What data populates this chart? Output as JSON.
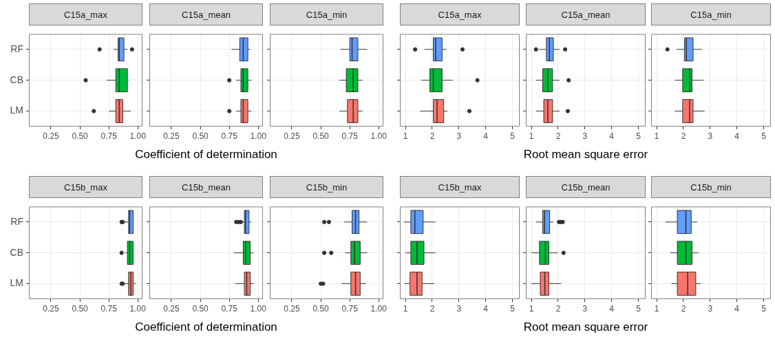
{
  "chart_data": [
    {
      "type": "box",
      "orientation": "horizontal",
      "title": "C15a_max",
      "categories": [
        "RF",
        "CB",
        "LM"
      ],
      "colors": [
        "#619cff",
        "#00ba38",
        "#f8766d"
      ],
      "xlim": [
        0.06,
        1.04
      ],
      "xticks": [
        {
          "value": 0.25,
          "label": "0.25"
        },
        {
          "value": 0.5,
          "label": "0.50"
        },
        {
          "value": 0.75,
          "label": "0.75"
        },
        {
          "value": 1,
          "label": "1.00"
        }
      ],
      "grid": true,
      "boxes": [
        {
          "low": 0.79,
          "q1": 0.83,
          "median": 0.84,
          "q3": 0.88,
          "high": 0.91,
          "outliers": [
            0.67,
            0.95
          ]
        },
        {
          "low": 0.73,
          "q1": 0.81,
          "median": 0.84,
          "q3": 0.91,
          "high": 0.92,
          "outliers": [
            0.55
          ]
        },
        {
          "low": 0.75,
          "q1": 0.81,
          "median": 0.84,
          "q3": 0.87,
          "high": 0.94,
          "outliers": [
            0.62
          ]
        }
      ]
    },
    {
      "type": "box",
      "orientation": "horizontal",
      "title": "C15a_mean",
      "xlabel": "Coefficient of determination",
      "tick_labels": "x",
      "categories": [
        null,
        null,
        null
      ],
      "colors": [
        "#619cff",
        "#00ba38",
        "#f8766d"
      ],
      "xlim": [
        0.06,
        1.04
      ],
      "xticks": [
        {
          "value": 0.25,
          "label": "0.25"
        },
        {
          "value": 0.5,
          "label": "0.50"
        },
        {
          "value": 0.75,
          "label": "0.75"
        },
        {
          "value": 1,
          "label": "1.00"
        }
      ],
      "grid": true,
      "boxes": [
        {
          "low": 0.77,
          "q1": 0.84,
          "median": 0.87,
          "q3": 0.91,
          "high": 0.93
        },
        {
          "low": 0.81,
          "q1": 0.85,
          "median": 0.87,
          "q3": 0.91,
          "high": 0.94,
          "outliers": [
            0.75
          ]
        },
        {
          "low": 0.81,
          "q1": 0.85,
          "median": 0.87,
          "q3": 0.91,
          "high": 0.94,
          "outliers": [
            0.75
          ]
        }
      ]
    },
    {
      "type": "box",
      "orientation": "horizontal",
      "title": "C15a_min",
      "tick_labels": "x",
      "categories": [
        null,
        null,
        null
      ],
      "colors": [
        "#619cff",
        "#00ba38",
        "#f8766d"
      ],
      "xlim": [
        0.06,
        1.04
      ],
      "xticks": [
        {
          "value": 0.25,
          "label": "0.25"
        },
        {
          "value": 0.5,
          "label": "0.50"
        },
        {
          "value": 0.75,
          "label": "0.75"
        },
        {
          "value": 1,
          "label": "1.00"
        }
      ],
      "grid": true,
      "boxes": [
        {
          "low": 0.67,
          "q1": 0.75,
          "median": 0.77,
          "q3": 0.82,
          "high": 0.9
        },
        {
          "low": 0.66,
          "q1": 0.72,
          "median": 0.78,
          "q3": 0.82,
          "high": 0.86
        },
        {
          "low": 0.66,
          "q1": 0.73,
          "median": 0.78,
          "q3": 0.82,
          "high": 0.86
        }
      ]
    },
    {
      "type": "box",
      "orientation": "horizontal",
      "title": "C15a_max",
      "tick_labels": "x",
      "categories": [
        null,
        null,
        null
      ],
      "colors": [
        "#619cff",
        "#00ba38",
        "#f8766d"
      ],
      "xlim": [
        0.79,
        5.27
      ],
      "xticks": [
        1,
        2,
        3,
        4,
        5
      ],
      "grid": true,
      "boxes": [
        {
          "low": 1.71,
          "q1": 2.04,
          "median": 2.13,
          "q3": 2.37,
          "high": 2.53,
          "outliers": [
            1.36,
            3.13
          ]
        },
        {
          "low": 1.59,
          "q1": 1.91,
          "median": 2.04,
          "q3": 2.37,
          "high": 2.77,
          "outliers": [
            3.69
          ]
        },
        {
          "low": 1.55,
          "q1": 2.04,
          "median": 2.18,
          "q3": 2.43,
          "high": 2.57,
          "outliers": [
            3.39
          ]
        }
      ]
    },
    {
      "type": "box",
      "orientation": "horizontal",
      "title": "C15a_mean",
      "xlabel": "Root mean square error",
      "tick_labels": "x",
      "categories": [
        null,
        null,
        null
      ],
      "colors": [
        "#619cff",
        "#00ba38",
        "#f8766d"
      ],
      "xlim": [
        0.79,
        5.27
      ],
      "xticks": [
        1,
        2,
        3,
        4,
        5
      ],
      "grid": true,
      "boxes": [
        {
          "low": 1.28,
          "q1": 1.56,
          "median": 1.67,
          "q3": 1.82,
          "high": 2.05,
          "outliers": [
            1.17,
            2.26
          ]
        },
        {
          "low": 1.17,
          "q1": 1.42,
          "median": 1.61,
          "q3": 1.79,
          "high": 2.05,
          "outliers": [
            2.39
          ]
        },
        {
          "low": 1.17,
          "q1": 1.46,
          "median": 1.61,
          "q3": 1.79,
          "high": 2.05,
          "outliers": [
            2.36
          ]
        }
      ]
    },
    {
      "type": "box",
      "orientation": "horizontal",
      "title": "C15a_min",
      "tick_labels": "x",
      "categories": [
        null,
        null,
        null
      ],
      "colors": [
        "#619cff",
        "#00ba38",
        "#f8766d"
      ],
      "xlim": [
        0.79,
        5.27
      ],
      "xticks": [
        1,
        2,
        3,
        4,
        5
      ],
      "grid": true,
      "boxes": [
        {
          "low": 1.75,
          "q1": 2.04,
          "median": 2.11,
          "q3": 2.36,
          "high": 2.69,
          "outliers": [
            1.4
          ]
        },
        {
          "low": 1.68,
          "q1": 1.97,
          "median": 2.23,
          "q3": 2.32,
          "high": 2.75
        },
        {
          "low": 1.68,
          "q1": 1.97,
          "median": 2.23,
          "q3": 2.36,
          "high": 2.79
        }
      ]
    },
    {
      "type": "box",
      "orientation": "horizontal",
      "title": "C15b_max",
      "categories": [
        "RF",
        "CB",
        "LM"
      ],
      "colors": [
        "#619cff",
        "#00ba38",
        "#f8766d"
      ],
      "xlim": [
        0.06,
        1.04
      ],
      "xticks": [
        {
          "value": 0.25,
          "label": "0.25"
        },
        {
          "value": 0.5,
          "label": "0.50"
        },
        {
          "value": 0.75,
          "label": "0.75"
        },
        {
          "value": 1,
          "label": "1.00"
        }
      ],
      "grid": true,
      "boxes": [
        {
          "low": 0.89,
          "q1": 0.92,
          "median": 0.93,
          "q3": 0.96,
          "high": 0.96,
          "outliers": [
            0.86,
            0.87
          ]
        },
        {
          "low": 0.89,
          "q1": 0.91,
          "median": 0.93,
          "q3": 0.96,
          "high": 0.96,
          "outliers": [
            0.86
          ]
        },
        {
          "low": 0.89,
          "q1": 0.92,
          "median": 0.94,
          "q3": 0.96,
          "high": 0.98,
          "outliers": [
            0.86,
            0.87
          ]
        }
      ]
    },
    {
      "type": "box",
      "orientation": "horizontal",
      "title": "C15b_mean",
      "xlabel": "Coefficient of determination",
      "tick_labels": "x",
      "categories": [
        null,
        null,
        null
      ],
      "colors": [
        "#619cff",
        "#00ba38",
        "#f8766d"
      ],
      "xlim": [
        0.06,
        1.04
      ],
      "xticks": [
        {
          "value": 0.25,
          "label": "0.25"
        },
        {
          "value": 0.5,
          "label": "0.50"
        },
        {
          "value": 0.75,
          "label": "0.75"
        },
        {
          "value": 1,
          "label": "1.00"
        }
      ],
      "grid": true,
      "boxes": [
        {
          "low": 0.87,
          "q1": 0.88,
          "median": 0.89,
          "q3": 0.92,
          "high": 0.94,
          "outliers": [
            0.81,
            0.83,
            0.85
          ]
        },
        {
          "low": 0.79,
          "q1": 0.87,
          "median": 0.89,
          "q3": 0.93,
          "high": 0.96
        },
        {
          "low": 0.8,
          "q1": 0.88,
          "median": 0.9,
          "q3": 0.93,
          "high": 0.96
        }
      ]
    },
    {
      "type": "box",
      "orientation": "horizontal",
      "title": "C15b_min",
      "tick_labels": "x",
      "categories": [
        null,
        null,
        null
      ],
      "colors": [
        "#619cff",
        "#00ba38",
        "#f8766d"
      ],
      "xlim": [
        0.06,
        1.04
      ],
      "xticks": [
        {
          "value": 0.25,
          "label": "0.25"
        },
        {
          "value": 0.5,
          "label": "0.50"
        },
        {
          "value": 0.75,
          "label": "0.75"
        },
        {
          "value": 1,
          "label": "1.00"
        }
      ],
      "grid": true,
      "boxes": [
        {
          "low": 0.7,
          "q1": 0.77,
          "median": 0.8,
          "q3": 0.83,
          "high": 0.9,
          "outliers": [
            0.53,
            0.57
          ]
        },
        {
          "low": 0.71,
          "q1": 0.76,
          "median": 0.79,
          "q3": 0.84,
          "high": 0.9,
          "outliers": [
            0.53,
            0.59
          ]
        },
        {
          "low": 0.68,
          "q1": 0.76,
          "median": 0.8,
          "q3": 0.84,
          "high": 0.89,
          "outliers": [
            0.5,
            0.52
          ]
        }
      ]
    },
    {
      "type": "box",
      "orientation": "horizontal",
      "title": "C15b_max",
      "tick_labels": "x",
      "categories": [
        null,
        null,
        null
      ],
      "colors": [
        "#619cff",
        "#00ba38",
        "#f8766d"
      ],
      "xlim": [
        0.79,
        5.27
      ],
      "xticks": [
        1,
        2,
        3,
        4,
        5
      ],
      "grid": true,
      "boxes": [
        {
          "low": 0.94,
          "q1": 1.2,
          "median": 1.35,
          "q3": 1.66,
          "high": 2.12
        },
        {
          "low": 1.0,
          "q1": 1.2,
          "median": 1.43,
          "q3": 1.69,
          "high": 2.12
        },
        {
          "low": 0.96,
          "q1": 1.17,
          "median": 1.43,
          "q3": 1.62,
          "high": 2.08
        }
      ]
    },
    {
      "type": "box",
      "orientation": "horizontal",
      "title": "C15b_mean",
      "xlabel": "Root mean square error",
      "tick_labels": "x",
      "categories": [
        null,
        null,
        null
      ],
      "colors": [
        "#619cff",
        "#00ba38",
        "#f8766d"
      ],
      "xlim": [
        0.79,
        5.27
      ],
      "xticks": [
        1,
        2,
        3,
        4,
        5
      ],
      "grid": true,
      "boxes": [
        {
          "low": 1.17,
          "q1": 1.42,
          "median": 1.49,
          "q3": 1.68,
          "high": 1.82,
          "outliers": [
            2.03,
            2.1,
            2.17
          ]
        },
        {
          "low": 1.0,
          "q1": 1.3,
          "median": 1.52,
          "q3": 1.65,
          "high": 1.98,
          "outliers": [
            2.2
          ]
        },
        {
          "low": 1.0,
          "q1": 1.33,
          "median": 1.5,
          "q3": 1.65,
          "high": 2.11
        }
      ]
    },
    {
      "type": "box",
      "orientation": "horizontal",
      "title": "C15b_min",
      "tick_labels": "x",
      "categories": [
        null,
        null,
        null
      ],
      "colors": [
        "#619cff",
        "#00ba38",
        "#f8766d"
      ],
      "xlim": [
        0.79,
        5.27
      ],
      "xticks": [
        1,
        2,
        3,
        4,
        5
      ],
      "grid": true,
      "boxes": [
        {
          "low": 1.33,
          "q1": 1.77,
          "median": 2.09,
          "q3": 2.29,
          "high": 2.52
        },
        {
          "low": 1.51,
          "q1": 1.77,
          "median": 2.09,
          "q3": 2.32,
          "high": 2.56
        },
        {
          "low": 1.55,
          "q1": 1.77,
          "median": 2.16,
          "q3": 2.46,
          "high": 2.65
        }
      ]
    }
  ]
}
